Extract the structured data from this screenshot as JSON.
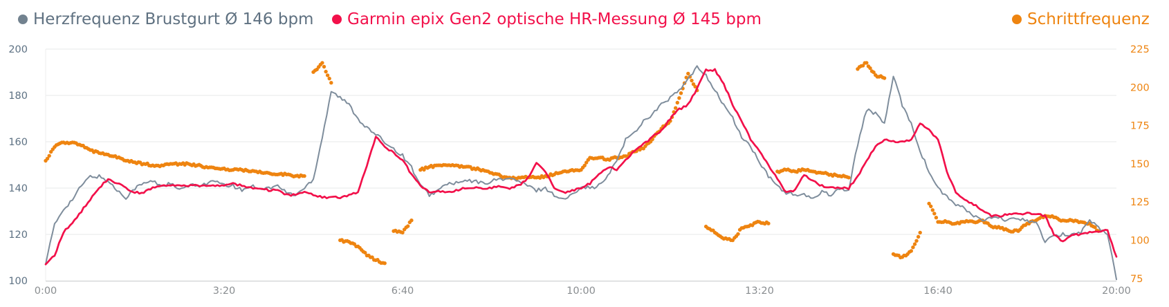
{
  "legend": {
    "items": [
      {
        "id": "hr-chest",
        "label": "Herzfrequenz Brustgurt Ø 146 bpm",
        "text_color": "#5f7181",
        "marker_color": "#72828f"
      },
      {
        "id": "hr-optical",
        "label": "Garmin epix Gen2 optische HR-Messung Ø 145 bpm",
        "text_color": "#f2104a",
        "marker_color": "#f2104a"
      },
      {
        "id": "cadence",
        "label": "Schrittfrequenz",
        "text_color": "#ee8410",
        "marker_color": "#ee8410"
      }
    ]
  },
  "chart_data": {
    "type": "line+scatter",
    "duration_s": 1200,
    "sample_interval_s": 10,
    "grid": "horizontal",
    "legend_position": "top",
    "x_ticks": [
      {
        "t": 0,
        "label": "0:00"
      },
      {
        "t": 200,
        "label": "3:20"
      },
      {
        "t": 400,
        "label": "6:40"
      },
      {
        "t": 600,
        "label": "10:00"
      },
      {
        "t": 800,
        "label": "13:20"
      },
      {
        "t": 1000,
        "label": "16:40"
      },
      {
        "t": 1200,
        "label": "20:00"
      }
    ],
    "x_tick_color": "#898d90",
    "y_left": {
      "unit": "bpm",
      "min": 100,
      "max": 200,
      "ticks": [
        200,
        180,
        160,
        140,
        120,
        100
      ],
      "color": "#5d7183"
    },
    "y_right": {
      "unit": "spm",
      "min": 75,
      "max": 225,
      "ticks": [
        225,
        200,
        175,
        150,
        125,
        100,
        75
      ],
      "color": "#ee8410"
    },
    "grid_color": "#e7e8e9",
    "axis_color": "#c6c9cb",
    "series": [
      {
        "id": "hr-chest",
        "name": "Herzfrequenz Brustgurt",
        "average_bpm": 146,
        "axis": "left",
        "type": "line",
        "color": "#7e8d9c",
        "width": 2,
        "jit": 1.6,
        "values": [
          108,
          124,
          131,
          135,
          141,
          145,
          145,
          143,
          139,
          136,
          140,
          142,
          143,
          141,
          142,
          139,
          141,
          141,
          142,
          143,
          141,
          141,
          139,
          141,
          140,
          140,
          141,
          138,
          137,
          140,
          144,
          162,
          182,
          179,
          176,
          170,
          166,
          163,
          160,
          157,
          154,
          149,
          141,
          137,
          139,
          142,
          142,
          143,
          143,
          142,
          143,
          144,
          144,
          143,
          141,
          139,
          140,
          137,
          135,
          137,
          141,
          140,
          141,
          145,
          152,
          161,
          164,
          169,
          172,
          176,
          179,
          182,
          187,
          192,
          189,
          182,
          176,
          170,
          162,
          158,
          151,
          145,
          141,
          138,
          137,
          137,
          135,
          139,
          137,
          140,
          139,
          159,
          174,
          172,
          168,
          188,
          176,
          168,
          156,
          147,
          140,
          136,
          133,
          131,
          128,
          126,
          127,
          127,
          126,
          127,
          126,
          125,
          117,
          119,
          120,
          120,
          121,
          126,
          123,
          120,
          101
        ]
      },
      {
        "id": "hr-optical",
        "name": "Garmin epix Gen2 optische HR-Messung",
        "average_bpm": 145,
        "axis": "left",
        "type": "line",
        "color": "#f2104a",
        "width": 2.7,
        "jit": 0.9,
        "values": [
          107,
          111,
          121,
          125,
          130,
          135,
          140,
          144,
          142,
          140,
          138,
          138,
          140,
          141,
          141,
          141,
          141,
          141,
          141,
          141,
          141,
          142,
          141,
          140,
          140,
          139,
          139,
          137,
          137,
          138,
          137,
          136,
          136,
          136,
          137,
          138,
          150,
          162,
          158,
          155,
          152,
          146,
          141,
          138,
          139,
          138,
          139,
          140,
          140,
          140,
          140,
          141,
          140,
          141,
          144,
          151,
          147,
          140,
          138,
          139,
          140,
          142,
          146,
          149,
          148,
          152,
          156,
          159,
          162,
          165,
          170,
          174,
          176,
          183,
          191,
          191,
          185,
          176,
          169,
          161,
          156,
          150,
          144,
          138,
          139,
          146,
          143,
          141,
          140,
          140,
          140,
          145,
          152,
          158,
          161,
          160,
          160,
          161,
          168,
          165,
          161,
          147,
          138,
          135,
          133,
          130,
          128,
          128,
          129,
          129,
          129,
          129,
          128,
          120,
          117,
          120,
          120,
          121,
          121,
          122,
          110
        ]
      },
      {
        "id": "cadence",
        "name": "Schrittfrequenz",
        "axis": "right",
        "type": "scatter",
        "color": "#ee8410",
        "dot_r": 2.7,
        "jit": 1.4,
        "values": [
          152,
          161,
          164,
          164,
          162,
          159,
          157,
          156,
          154,
          152,
          151,
          150,
          149,
          149,
          150,
          150,
          150,
          149,
          148,
          147,
          147,
          146,
          146,
          145,
          145,
          144,
          143,
          143,
          142,
          142,
          210,
          216,
          203,
          100,
          99,
          96,
          90,
          87,
          85,
          106,
          105,
          113,
          146,
          148,
          149,
          149,
          149,
          148,
          147,
          146,
          144,
          142,
          141,
          141,
          141,
          141,
          142,
          143,
          145,
          146,
          146,
          154,
          154,
          153,
          154,
          155,
          158,
          160,
          166,
          173,
          178,
          193,
          209,
          198,
          109,
          105,
          101,
          100,
          108,
          110,
          112,
          111,
          145,
          146,
          145,
          146,
          145,
          144,
          143,
          142,
          141,
          212,
          216,
          208,
          206,
          91,
          89,
          93,
          105,
          124,
          112,
          112,
          111,
          112,
          112,
          113,
          109,
          108,
          106,
          106,
          111,
          113,
          116,
          115,
          113,
          113,
          112,
          111,
          106,
          null,
          null
        ]
      }
    ]
  }
}
